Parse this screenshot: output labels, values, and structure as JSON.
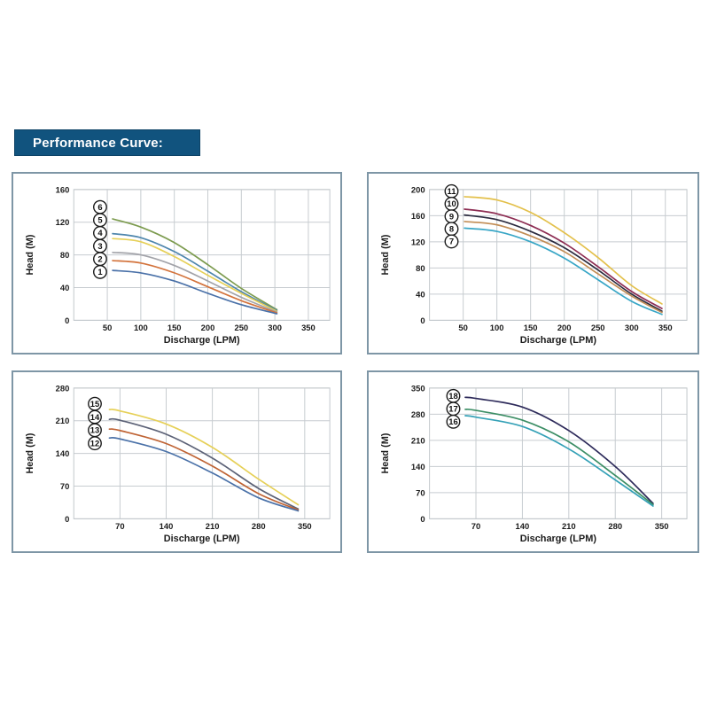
{
  "header": {
    "label": "Performance Curve:",
    "bg_color": "#11537e",
    "text_color": "#ffffff"
  },
  "chart_data": [
    {
      "id": "pump-curves-1-6",
      "type": "line",
      "xlabel": "Discharge (LPM)",
      "ylabel": "Head (M)",
      "xlim": [
        0,
        382
      ],
      "ylim": [
        0,
        160
      ],
      "xticks": [
        50,
        100,
        150,
        200,
        250,
        300,
        350
      ],
      "yticks": [
        0,
        40,
        80,
        120,
        160
      ],
      "grid": true,
      "legend": {
        "style": "circled-numbers",
        "position": "left-of-curve-starts",
        "cx": 99,
        "cy_start": 38,
        "cy_step": 14.8
      },
      "series": [
        {
          "name": "6",
          "color": "#7c9b4e",
          "x": [
            58,
            100,
            150,
            200,
            250,
            303
          ],
          "y": [
            124,
            114,
            95,
            68,
            39,
            13
          ]
        },
        {
          "name": "5",
          "color": "#4e86ad",
          "x": [
            58,
            100,
            150,
            200,
            250,
            303
          ],
          "y": [
            106,
            101,
            84,
            60,
            35,
            12
          ]
        },
        {
          "name": "4",
          "color": "#e6d058",
          "x": [
            58,
            100,
            150,
            200,
            250,
            303
          ],
          "y": [
            100,
            96,
            78,
            55,
            33,
            11
          ]
        },
        {
          "name": "3",
          "color": "#a2a3a9",
          "x": [
            58,
            100,
            150,
            200,
            250,
            303
          ],
          "y": [
            83,
            80,
            67,
            48,
            28,
            10
          ]
        },
        {
          "name": "2",
          "color": "#d3733c",
          "x": [
            58,
            100,
            150,
            200,
            250,
            303
          ],
          "y": [
            73,
            70,
            58,
            41,
            24,
            9
          ]
        },
        {
          "name": "1",
          "color": "#4a71a8",
          "x": [
            58,
            100,
            150,
            200,
            250,
            303
          ],
          "y": [
            61,
            58,
            48,
            33,
            19,
            8
          ]
        }
      ]
    },
    {
      "id": "pump-curves-7-11",
      "type": "line",
      "xlabel": "Discharge (LPM)",
      "ylabel": "Head (M)",
      "xlim": [
        0,
        382
      ],
      "ylim": [
        0,
        200
      ],
      "xticks": [
        50,
        100,
        150,
        200,
        250,
        300,
        350
      ],
      "yticks": [
        0,
        40,
        80,
        120,
        160,
        200
      ],
      "grid": true,
      "legend": {
        "style": "circled-numbers",
        "position": "left-of-curve-starts",
        "cx": 94,
        "cy_start": 20,
        "cy_step": 14.3
      },
      "series": [
        {
          "name": "11",
          "color": "#e3c04b",
          "x": [
            52,
            100,
            150,
            200,
            250,
            300,
            345
          ],
          "y": [
            189,
            184,
            165,
            134,
            96,
            53,
            25
          ]
        },
        {
          "name": "10",
          "color": "#8d2d53",
          "x": [
            52,
            100,
            150,
            200,
            250,
            300,
            345
          ],
          "y": [
            170,
            163,
            145,
            118,
            82,
            44,
            18
          ]
        },
        {
          "name": "9",
          "color": "#2b2b3f",
          "x": [
            52,
            100,
            150,
            200,
            250,
            300,
            345
          ],
          "y": [
            161,
            154,
            136,
            111,
            77,
            40,
            14
          ]
        },
        {
          "name": "8",
          "color": "#c28d55",
          "x": [
            52,
            100,
            150,
            200,
            250,
            300,
            345
          ],
          "y": [
            151,
            146,
            129,
            105,
            71,
            37,
            12
          ]
        },
        {
          "name": "7",
          "color": "#38a6c6",
          "x": [
            52,
            100,
            150,
            200,
            250,
            300,
            345
          ],
          "y": [
            141,
            136,
            120,
            95,
            62,
            29,
            9
          ]
        }
      ]
    },
    {
      "id": "pump-curves-12-15",
      "type": "line",
      "xlabel": "Discharge (LPM)",
      "ylabel": "Head (M)",
      "xlim": [
        0,
        388
      ],
      "ylim": [
        0,
        280
      ],
      "xticks": [
        70,
        140,
        210,
        280,
        350
      ],
      "yticks": [
        0,
        70,
        140,
        210,
        280
      ],
      "grid": true,
      "legend": {
        "style": "circled-numbers",
        "position": "left-of-curve-starts",
        "cx": 93,
        "cy_start": 36,
        "cy_step": 15
      },
      "series": [
        {
          "name": "15",
          "color": "#e6d058",
          "x": [
            54,
            70,
            140,
            210,
            280,
            340
          ],
          "y": [
            234,
            231,
            203,
            153,
            85,
            30
          ]
        },
        {
          "name": "14",
          "color": "#5c6277",
          "x": [
            54,
            70,
            140,
            210,
            280,
            340
          ],
          "y": [
            213,
            211,
            181,
            130,
            65,
            21
          ]
        },
        {
          "name": "13",
          "color": "#bf6334",
          "x": [
            54,
            70,
            140,
            210,
            280,
            340
          ],
          "y": [
            192,
            189,
            161,
            113,
            54,
            19
          ]
        },
        {
          "name": "12",
          "color": "#4a71a8",
          "x": [
            54,
            70,
            140,
            210,
            280,
            340
          ],
          "y": [
            173,
            171,
            144,
            98,
            45,
            17
          ]
        }
      ]
    },
    {
      "id": "pump-curves-16-18",
      "type": "line",
      "xlabel": "Discharge (LPM)",
      "ylabel": "Head (M)",
      "xlim": [
        0,
        388
      ],
      "ylim": [
        0,
        350
      ],
      "xticks": [
        70,
        140,
        210,
        280,
        350
      ],
      "yticks": [
        0,
        70,
        140,
        210,
        280,
        350
      ],
      "grid": true,
      "legend": {
        "style": "circled-numbers",
        "position": "left-of-curve-starts",
        "cx": 96,
        "cy_start": 27,
        "cy_step": 14.7
      },
      "series": [
        {
          "name": "18",
          "color": "#2d2a5a",
          "x": [
            54,
            70,
            140,
            210,
            280,
            337
          ],
          "y": [
            325,
            322,
            299,
            236,
            140,
            41
          ]
        },
        {
          "name": "17",
          "color": "#3c8e65",
          "x": [
            54,
            70,
            140,
            210,
            280,
            337
          ],
          "y": [
            293,
            290,
            264,
            206,
            116,
            38
          ]
        },
        {
          "name": "16",
          "color": "#35a1b7",
          "x": [
            54,
            70,
            140,
            210,
            280,
            337
          ],
          "y": [
            276,
            272,
            247,
            187,
            104,
            34
          ]
        }
      ]
    }
  ]
}
